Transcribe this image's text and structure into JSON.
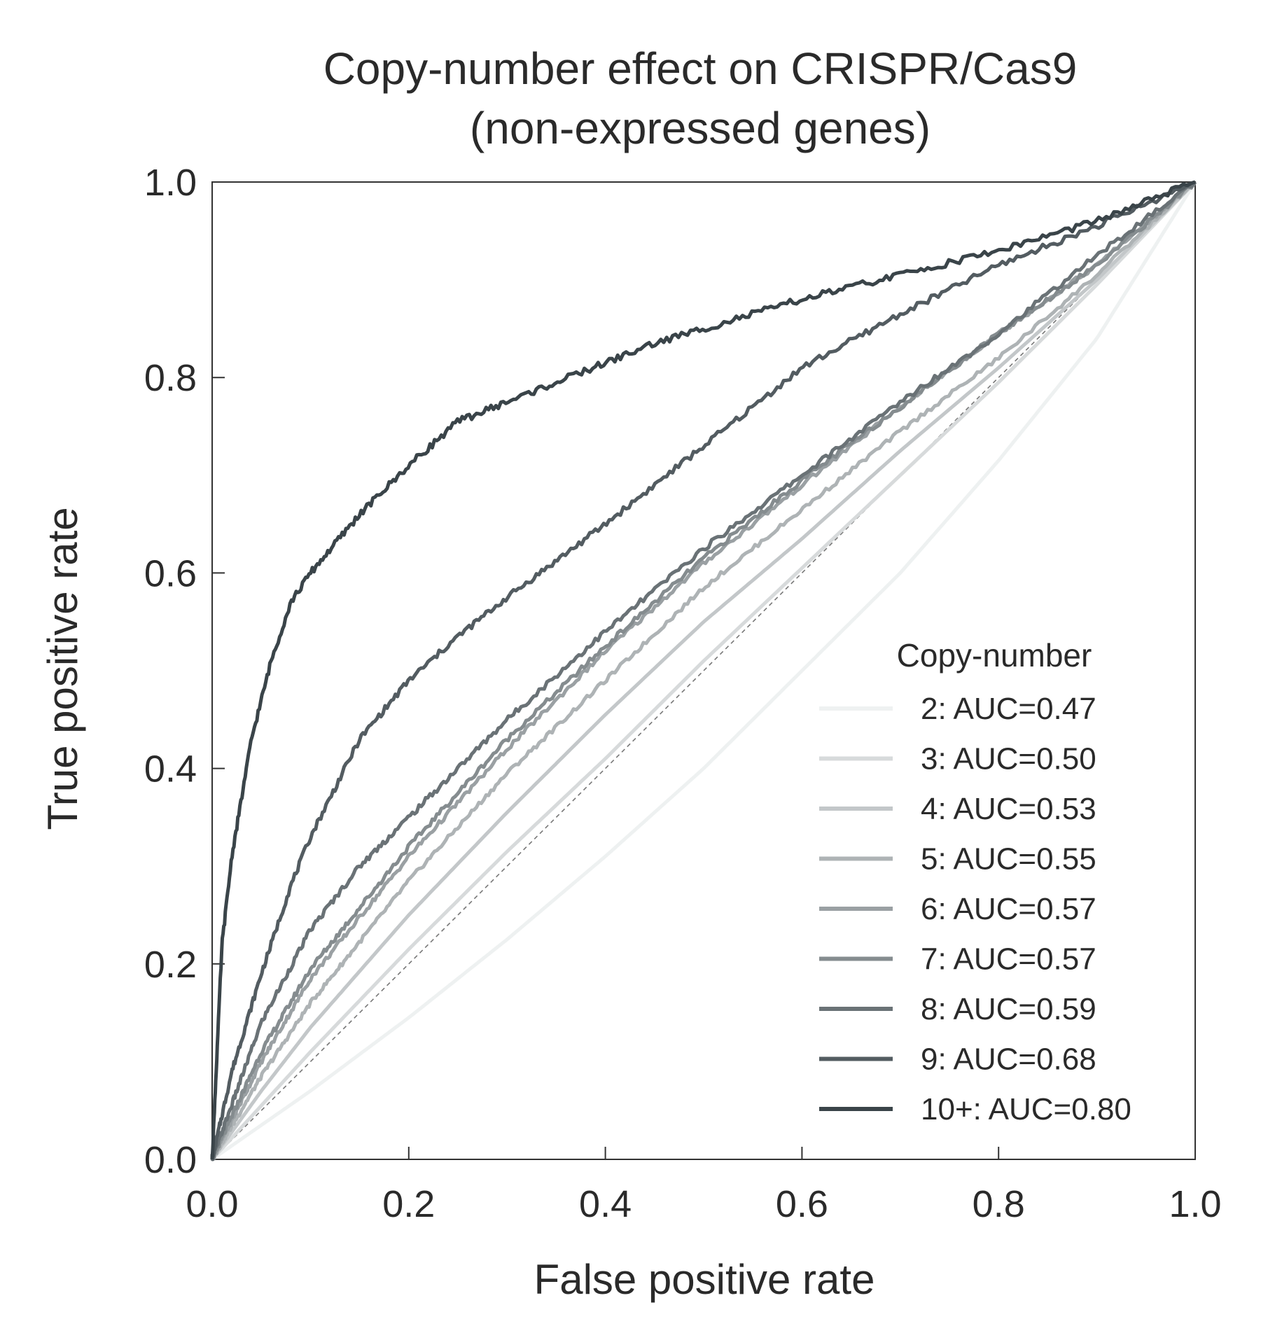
{
  "chart_data": {
    "type": "line",
    "title": "Copy-number effect on CRISPR/Cas9\n(non-expressed genes)",
    "title_lines": [
      "Copy-number effect on CRISPR/Cas9",
      "(non-expressed genes)"
    ],
    "xlabel": "False positive rate",
    "ylabel": "True positive rate",
    "xlim": [
      0.0,
      1.0
    ],
    "ylim": [
      0.0,
      1.0
    ],
    "xticks": [
      "0.0",
      "0.2",
      "0.4",
      "0.6",
      "0.8",
      "1.0"
    ],
    "yticks": [
      "0.0",
      "0.2",
      "0.4",
      "0.6",
      "0.8",
      "1.0"
    ],
    "grid": false,
    "diagonal_reference": true,
    "legend": {
      "title": "Copy-number",
      "placement": "lower-right"
    },
    "series": [
      {
        "name": "2: AUC=0.47",
        "color": "#eef1f1",
        "x": [
          0,
          0.1,
          0.2,
          0.3,
          0.4,
          0.5,
          0.6,
          0.7,
          0.8,
          0.9,
          1.0
        ],
        "y": [
          0,
          0.07,
          0.145,
          0.225,
          0.31,
          0.4,
          0.5,
          0.6,
          0.715,
          0.84,
          1.0
        ]
      },
      {
        "name": "3: AUC=0.50",
        "color": "#d7dadb",
        "x": [
          0,
          0.05,
          0.1,
          0.2,
          0.3,
          0.4,
          0.5,
          0.6,
          0.7,
          0.8,
          0.9,
          1.0
        ],
        "y": [
          0,
          0.055,
          0.11,
          0.215,
          0.315,
          0.41,
          0.51,
          0.605,
          0.7,
          0.795,
          0.895,
          1.0
        ]
      },
      {
        "name": "4: AUC=0.53",
        "color": "#c3c7c9",
        "x": [
          0,
          0.05,
          0.1,
          0.2,
          0.3,
          0.4,
          0.5,
          0.6,
          0.7,
          0.8,
          0.9,
          1.0
        ],
        "y": [
          0,
          0.07,
          0.135,
          0.25,
          0.355,
          0.455,
          0.55,
          0.635,
          0.725,
          0.81,
          0.9,
          1.0
        ]
      },
      {
        "name": "5: AUC=0.55",
        "color": "#aeb3b5",
        "x": [
          0,
          0.05,
          0.1,
          0.2,
          0.3,
          0.4,
          0.5,
          0.6,
          0.7,
          0.8,
          0.9,
          1.0
        ],
        "y": [
          0,
          0.085,
          0.16,
          0.285,
          0.395,
          0.49,
          0.585,
          0.665,
          0.745,
          0.82,
          0.905,
          1.0
        ]
      },
      {
        "name": "6: AUC=0.57",
        "color": "#9aa0a3",
        "x": [
          0,
          0.05,
          0.1,
          0.2,
          0.3,
          0.4,
          0.5,
          0.6,
          0.7,
          0.8,
          0.9,
          1.0
        ],
        "y": [
          0,
          0.1,
          0.185,
          0.31,
          0.42,
          0.52,
          0.61,
          0.69,
          0.77,
          0.845,
          0.915,
          1.0
        ]
      },
      {
        "name": "7: AUC=0.57",
        "color": "#858c8f",
        "x": [
          0,
          0.05,
          0.1,
          0.2,
          0.3,
          0.4,
          0.5,
          0.6,
          0.7,
          0.8,
          0.9,
          1.0
        ],
        "y": [
          0,
          0.11,
          0.195,
          0.32,
          0.43,
          0.525,
          0.615,
          0.695,
          0.77,
          0.845,
          0.915,
          1.0
        ]
      },
      {
        "name": "8: AUC=0.59",
        "color": "#6a7276",
        "x": [
          0,
          0.05,
          0.1,
          0.15,
          0.2,
          0.3,
          0.4,
          0.5,
          0.6,
          0.7,
          0.8,
          0.9,
          1.0
        ],
        "y": [
          0,
          0.14,
          0.235,
          0.3,
          0.35,
          0.45,
          0.54,
          0.625,
          0.7,
          0.775,
          0.845,
          0.925,
          1.0
        ]
      },
      {
        "name": "9: AUC=0.68",
        "color": "#535c61",
        "x": [
          0,
          0.02,
          0.05,
          0.08,
          0.1,
          0.15,
          0.2,
          0.25,
          0.3,
          0.4,
          0.5,
          0.6,
          0.7,
          0.8,
          0.9,
          1.0
        ],
        "y": [
          0,
          0.09,
          0.19,
          0.28,
          0.33,
          0.43,
          0.49,
          0.535,
          0.575,
          0.65,
          0.73,
          0.81,
          0.865,
          0.915,
          0.955,
          1.0
        ]
      },
      {
        "name": "10+: AUC=0.80",
        "color": "#3a4449",
        "x": [
          0,
          0.01,
          0.02,
          0.04,
          0.06,
          0.08,
          0.1,
          0.15,
          0.2,
          0.25,
          0.3,
          0.35,
          0.4,
          0.45,
          0.5,
          0.6,
          0.7,
          0.8,
          0.9,
          1.0
        ],
        "y": [
          0,
          0.22,
          0.31,
          0.43,
          0.51,
          0.57,
          0.6,
          0.66,
          0.71,
          0.755,
          0.775,
          0.795,
          0.815,
          0.835,
          0.85,
          0.88,
          0.905,
          0.93,
          0.96,
          1.0
        ]
      }
    ]
  }
}
